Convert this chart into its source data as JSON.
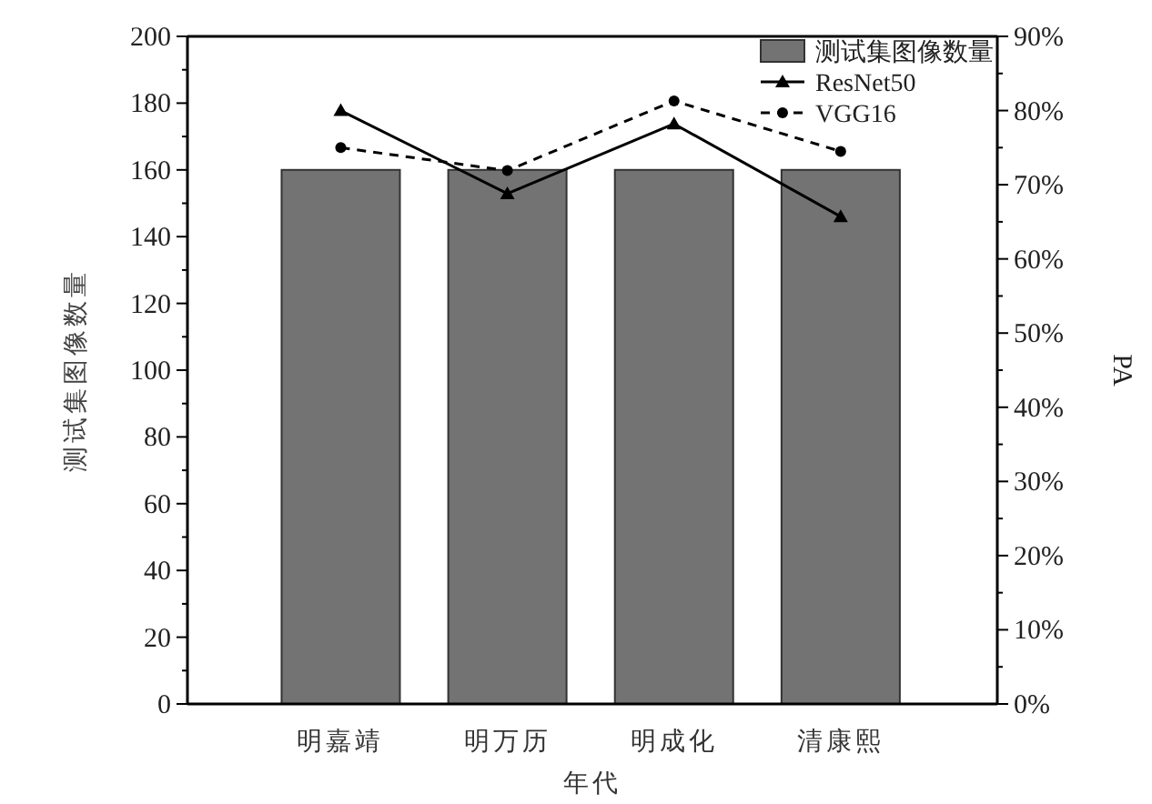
{
  "chart_data": {
    "type": "bar",
    "xlabel": "年代",
    "ylabel": "测试集图像数量",
    "y2label": "PA",
    "categories": [
      "明嘉靖",
      "明万历",
      "明成化",
      "清康熙"
    ],
    "series": [
      {
        "name": "测试集图像数量",
        "color": "#737373",
        "values": [
          160,
          160,
          160,
          160
        ]
      },
      {
        "name": "ResNet50",
        "type": "line",
        "axis": "y2",
        "color": "#000000",
        "marker": "triangle",
        "line_style": "solid",
        "values": [
          80.0,
          68.8,
          78.2,
          65.7
        ]
      },
      {
        "name": "VGG16",
        "type": "line",
        "axis": "y2",
        "color": "#000000",
        "marker": "circle",
        "line_style": "dashed",
        "values": [
          75.0,
          71.9,
          81.3,
          74.5
        ]
      }
    ],
    "ylim": [
      0,
      200
    ],
    "yticks": [
      0,
      {
        "value": 10,
        "label": null
      },
      20,
      {
        "value": 30,
        "label": null
      },
      40,
      {
        "value": 50,
        "label": null
      },
      60,
      {
        "value": 70,
        "label": null
      },
      80,
      {
        "value": 90,
        "label": null
      },
      100,
      {
        "value": 110,
        "label": null
      },
      120,
      {
        "value": 130,
        "label": null
      },
      140,
      {
        "value": 150,
        "label": null
      },
      160,
      {
        "value": 170,
        "label": null
      },
      180,
      {
        "value": 190,
        "label": null
      },
      200
    ],
    "y2lim": [
      0,
      90
    ],
    "y2ticks": [
      {
        "value": 0,
        "label": "0%"
      },
      {
        "value": 5,
        "label": null
      },
      {
        "value": 10,
        "label": "10%"
      },
      {
        "value": 15,
        "label": null
      },
      {
        "value": 20,
        "label": "20%"
      },
      {
        "value": 25,
        "label": null
      },
      {
        "value": 30,
        "label": "30%"
      },
      {
        "value": 35,
        "label": null
      },
      {
        "value": 40,
        "label": "40%"
      },
      {
        "value": 45,
        "label": null
      },
      {
        "value": 50,
        "label": "50%"
      },
      {
        "value": 55,
        "label": null
      },
      {
        "value": 60,
        "label": "60%"
      },
      {
        "value": 65,
        "label": null
      },
      {
        "value": 70,
        "label": "70%"
      },
      {
        "value": 75,
        "label": null
      },
      {
        "value": 80,
        "label": "80%"
      },
      {
        "value": 85,
        "label": null
      },
      {
        "value": 90,
        "label": "90%"
      }
    ],
    "legend": "top right"
  }
}
